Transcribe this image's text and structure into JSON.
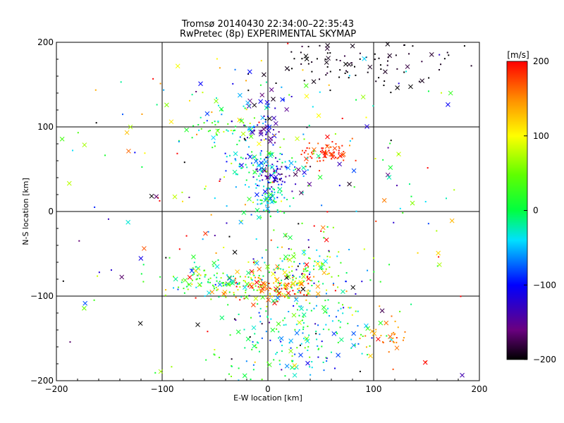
{
  "chart_data": {
    "type": "scatter",
    "title": "Tromsø 20140430 22:34:00–22:35:43",
    "subtitle": "RwPretec (8p) EXPERIMENTAL SKYMAP",
    "xlabel": "E-W location [km]",
    "ylabel": "N-S location [km]",
    "xlim": [
      -200,
      200
    ],
    "ylim": [
      -200,
      200
    ],
    "xticks": [
      -200,
      -100,
      0,
      100,
      200
    ],
    "yticks": [
      -200,
      -100,
      0,
      100,
      200
    ],
    "grid": true,
    "colorbar": {
      "label": "[m/s]",
      "range": [
        -200,
        200
      ],
      "ticks": [
        200,
        100,
        0,
        -100,
        -200
      ],
      "colormap": "rainbow (black–purple–blue–cyan–green–yellow–red)"
    },
    "marker_types": [
      "point",
      "cross"
    ],
    "clusters": [
      {
        "x": 52,
        "y": 68,
        "sx": 10,
        "sy": 7,
        "n": 70,
        "v": 185,
        "vs": 15,
        "cross_frac": 0.2
      },
      {
        "x": 5,
        "y": 42,
        "sx": 10,
        "sy": 7,
        "n": 60,
        "v": -130,
        "vs": 30,
        "cross_frac": 0.2
      },
      {
        "x": -5,
        "y": 58,
        "sx": 22,
        "sy": 10,
        "n": 90,
        "v": -30,
        "vs": 50,
        "cross_frac": 0.2
      },
      {
        "x": 0,
        "y": 18,
        "sx": 10,
        "sy": 12,
        "n": 70,
        "v": -30,
        "vs": 30,
        "cross_frac": 0.15
      },
      {
        "x": -40,
        "y": 100,
        "sx": 22,
        "sy": 10,
        "n": 60,
        "v": 10,
        "vs": 60,
        "cross_frac": 0.2
      },
      {
        "x": -5,
        "y": 95,
        "sx": 10,
        "sy": 8,
        "n": 30,
        "v": -120,
        "vs": 40,
        "cross_frac": 0.3
      },
      {
        "x": 80,
        "y": 180,
        "sx": 45,
        "sy": 18,
        "n": 110,
        "v": -195,
        "vs": 8,
        "cross_frac": 0.25
      },
      {
        "x": -10,
        "y": 135,
        "sx": 30,
        "sy": 20,
        "n": 40,
        "v": -60,
        "vs": 120,
        "cross_frac": 0.35
      },
      {
        "x": 10,
        "y": -88,
        "sx": 22,
        "sy": 10,
        "n": 140,
        "v": 150,
        "vs": 60,
        "cross_frac": 0.25
      },
      {
        "x": -55,
        "y": -82,
        "sx": 25,
        "sy": 10,
        "n": 120,
        "v": 10,
        "vs": 60,
        "cross_frac": 0.2
      },
      {
        "x": 40,
        "y": -130,
        "sx": 30,
        "sy": 30,
        "n": 170,
        "v": -20,
        "vs": 50,
        "cross_frac": 0.15
      },
      {
        "x": 30,
        "y": -65,
        "sx": 20,
        "sy": 12,
        "n": 80,
        "v": 30,
        "vs": 60,
        "cross_frac": 0.15
      },
      {
        "x": 115,
        "y": -150,
        "sx": 10,
        "sy": 15,
        "n": 30,
        "v": 150,
        "vs": 20,
        "cross_frac": 0.1
      },
      {
        "x": 0,
        "y": -170,
        "sx": 30,
        "sy": 20,
        "n": 60,
        "v": -10,
        "vs": 60,
        "cross_frac": 0.15
      },
      {
        "x": 0,
        "y": 0,
        "sx": 110,
        "sy": 110,
        "n": 320,
        "v": 0,
        "vs": 150,
        "cross_frac": 0.3
      }
    ]
  }
}
